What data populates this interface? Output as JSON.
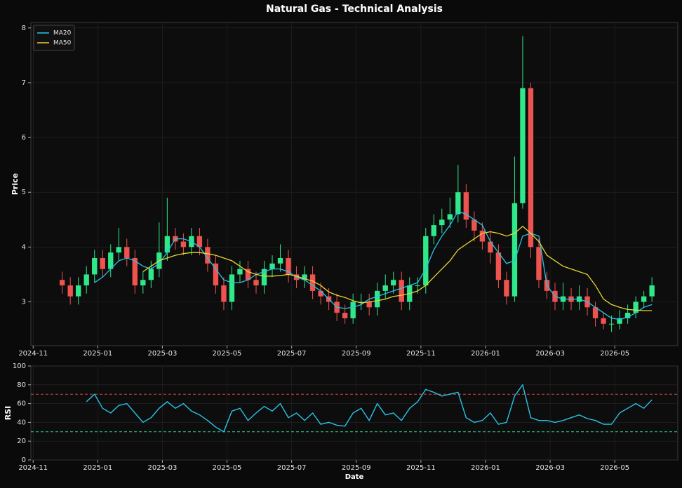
{
  "chart_data": [
    {
      "type": "candlestick",
      "title": "Natural Gas - Technical Analysis",
      "ylabel": "Price",
      "xlim": [
        -0.07,
        19.95
      ],
      "ylim": [
        2.2,
        8.1
      ],
      "xticks": [
        {
          "value": 0,
          "label": "2024-11"
        },
        {
          "value": 2,
          "label": "2025-01"
        },
        {
          "value": 4,
          "label": "2025-03"
        },
        {
          "value": 6,
          "label": "2025-05"
        },
        {
          "value": 8,
          "label": "2025-07"
        },
        {
          "value": 10,
          "label": "2025-09"
        },
        {
          "value": 12,
          "label": "2025-11"
        },
        {
          "value": 14,
          "label": "2026-01"
        },
        {
          "value": 16,
          "label": "2026-03"
        },
        {
          "value": 18,
          "label": "2026-05"
        }
      ],
      "yticks": [
        3,
        4,
        5,
        6,
        7,
        8
      ],
      "grid": true,
      "legend": "upper left",
      "up_color": "#2ee88a",
      "down_color": "#ef5350",
      "x": [
        0.9,
        1.15,
        1.4,
        1.65,
        1.9,
        2.15,
        2.4,
        2.65,
        2.9,
        3.15,
        3.4,
        3.65,
        3.9,
        4.15,
        4.4,
        4.65,
        4.9,
        5.15,
        5.4,
        5.65,
        5.9,
        6.15,
        6.4,
        6.65,
        6.9,
        7.15,
        7.4,
        7.65,
        7.9,
        8.15,
        8.4,
        8.65,
        8.9,
        9.15,
        9.4,
        9.65,
        9.9,
        10.15,
        10.4,
        10.65,
        10.9,
        11.15,
        11.4,
        11.65,
        11.9,
        12.15,
        12.4,
        12.65,
        12.9,
        13.15,
        13.4,
        13.65,
        13.9,
        14.15,
        14.4,
        14.65,
        14.9,
        15.15,
        15.4,
        15.65,
        15.9,
        16.15,
        16.4,
        16.65,
        16.9,
        17.15,
        17.4,
        17.65,
        17.9,
        18.15,
        18.4,
        18.65,
        18.9,
        19.15
      ],
      "open": [
        3.4,
        3.3,
        3.1,
        3.3,
        3.5,
        3.8,
        3.6,
        3.9,
        4.0,
        3.8,
        3.3,
        3.4,
        3.6,
        3.9,
        4.2,
        4.1,
        4.0,
        4.2,
        4.0,
        3.7,
        3.3,
        3.0,
        3.5,
        3.6,
        3.4,
        3.3,
        3.6,
        3.7,
        3.8,
        3.5,
        3.4,
        3.5,
        3.2,
        3.1,
        3.0,
        2.8,
        2.7,
        3.0,
        3.0,
        2.9,
        3.2,
        3.3,
        3.4,
        3.0,
        3.3,
        3.3,
        4.2,
        4.4,
        4.5,
        4.6,
        5.0,
        4.5,
        4.3,
        4.1,
        3.9,
        3.4,
        3.1,
        4.8,
        6.9,
        4.0,
        3.4,
        3.2,
        3.0,
        3.1,
        3.0,
        3.1,
        2.9,
        2.7,
        2.6,
        2.6,
        2.7,
        2.8,
        3.0,
        3.1
      ],
      "high": [
        3.55,
        3.45,
        3.45,
        3.65,
        3.95,
        3.95,
        4.05,
        4.35,
        4.15,
        3.95,
        3.55,
        3.75,
        4.45,
        4.9,
        4.35,
        4.25,
        4.35,
        4.35,
        4.15,
        3.85,
        3.45,
        3.65,
        3.75,
        3.75,
        3.55,
        3.75,
        3.85,
        4.05,
        3.95,
        3.65,
        3.65,
        3.65,
        3.35,
        3.25,
        3.15,
        2.95,
        3.15,
        3.15,
        3.15,
        3.35,
        3.5,
        3.55,
        3.55,
        3.45,
        3.45,
        4.35,
        4.6,
        4.7,
        4.9,
        5.5,
        5.15,
        4.65,
        4.45,
        4.3,
        4.05,
        3.55,
        5.65,
        7.85,
        7.0,
        4.15,
        3.55,
        3.35,
        3.35,
        3.25,
        3.3,
        3.25,
        3.0,
        2.8,
        2.75,
        2.85,
        2.95,
        3.1,
        3.2,
        3.45
      ],
      "low": [
        3.15,
        2.95,
        2.95,
        3.15,
        3.35,
        3.45,
        3.45,
        3.75,
        3.65,
        3.15,
        3.15,
        3.25,
        3.45,
        3.75,
        3.95,
        3.85,
        3.85,
        3.85,
        3.55,
        3.15,
        2.85,
        2.85,
        3.35,
        3.25,
        3.15,
        3.15,
        3.45,
        3.55,
        3.35,
        3.25,
        3.25,
        3.05,
        2.95,
        2.85,
        2.65,
        2.6,
        2.6,
        2.85,
        2.75,
        2.75,
        3.05,
        3.15,
        2.85,
        2.85,
        3.15,
        3.15,
        4.05,
        4.25,
        4.35,
        4.45,
        4.35,
        4.1,
        3.95,
        3.7,
        3.25,
        2.95,
        3.0,
        4.7,
        3.8,
        3.25,
        3.05,
        2.85,
        2.85,
        2.85,
        2.85,
        2.75,
        2.55,
        2.5,
        2.45,
        2.5,
        2.6,
        2.7,
        2.9,
        3.0
      ],
      "close": [
        3.3,
        3.1,
        3.3,
        3.5,
        3.8,
        3.6,
        3.9,
        4.0,
        3.8,
        3.3,
        3.4,
        3.6,
        3.9,
        4.2,
        4.1,
        4.0,
        4.2,
        4.0,
        3.7,
        3.3,
        3.0,
        3.5,
        3.6,
        3.4,
        3.3,
        3.6,
        3.7,
        3.8,
        3.5,
        3.4,
        3.5,
        3.2,
        3.1,
        3.0,
        2.8,
        2.7,
        3.0,
        3.0,
        2.9,
        3.2,
        3.3,
        3.4,
        3.0,
        3.3,
        3.3,
        4.2,
        4.4,
        4.5,
        4.6,
        5.0,
        4.5,
        4.3,
        4.1,
        3.9,
        3.4,
        3.1,
        4.8,
        6.9,
        4.0,
        3.4,
        3.2,
        3.0,
        3.1,
        3.0,
        3.1,
        2.9,
        2.7,
        2.6,
        2.6,
        2.7,
        2.8,
        3.0,
        3.1,
        3.3
      ],
      "series": [
        {
          "name": "MA20",
          "color": "#29c4e8",
          "values": [
            null,
            null,
            null,
            null,
            3.35,
            3.45,
            3.6,
            3.75,
            3.8,
            3.75,
            3.65,
            3.6,
            3.7,
            3.9,
            4.15,
            4.15,
            4.1,
            4.0,
            3.8,
            3.6,
            3.4,
            3.35,
            3.35,
            3.4,
            3.5,
            3.55,
            3.6,
            3.6,
            3.55,
            3.45,
            3.4,
            3.3,
            3.2,
            3.05,
            2.9,
            2.88,
            2.9,
            2.95,
            3.05,
            3.1,
            3.15,
            3.2,
            3.25,
            3.3,
            3.35,
            3.6,
            3.95,
            4.2,
            4.4,
            4.65,
            4.6,
            4.5,
            4.4,
            4.1,
            3.9,
            3.7,
            3.75,
            4.2,
            4.25,
            4.2,
            3.3,
            3.1,
            3.05,
            3.05,
            3.05,
            3.0,
            2.9,
            2.8,
            2.7,
            2.68,
            2.72,
            2.8,
            2.9,
            2.95
          ]
        },
        {
          "name": "MA50",
          "color": "#e8d630",
          "values": [
            null,
            null,
            null,
            null,
            null,
            null,
            null,
            null,
            null,
            null,
            3.55,
            3.65,
            3.75,
            3.8,
            3.85,
            3.88,
            3.9,
            3.9,
            3.88,
            3.85,
            3.8,
            3.75,
            3.65,
            3.55,
            3.5,
            3.47,
            3.47,
            3.48,
            3.5,
            3.47,
            3.42,
            3.38,
            3.3,
            3.18,
            3.12,
            3.08,
            3.02,
            2.98,
            3.0,
            3.02,
            3.05,
            3.1,
            3.12,
            3.15,
            3.2,
            3.3,
            3.45,
            3.6,
            3.75,
            3.95,
            4.05,
            4.15,
            4.25,
            4.28,
            4.25,
            4.2,
            4.25,
            4.38,
            4.25,
            4.1,
            3.85,
            3.75,
            3.65,
            3.6,
            3.55,
            3.5,
            3.3,
            3.05,
            2.95,
            2.9,
            2.86,
            2.85,
            2.84,
            2.84
          ]
        }
      ]
    },
    {
      "type": "line",
      "ylabel": "RSI",
      "xlabel": "Date",
      "xlim": [
        -0.07,
        19.95
      ],
      "ylim": [
        0,
        100
      ],
      "xticks": [
        {
          "value": 0,
          "label": "2024-11"
        },
        {
          "value": 2,
          "label": "2025-01"
        },
        {
          "value": 4,
          "label": "2025-03"
        },
        {
          "value": 6,
          "label": "2025-05"
        },
        {
          "value": 8,
          "label": "2025-07"
        },
        {
          "value": 10,
          "label": "2025-09"
        },
        {
          "value": 12,
          "label": "2025-11"
        },
        {
          "value": 14,
          "label": "2026-01"
        },
        {
          "value": 16,
          "label": "2026-03"
        },
        {
          "value": 18,
          "label": "2026-05"
        }
      ],
      "yticks": [
        0,
        20,
        40,
        60,
        80,
        100
      ],
      "grid": true,
      "hlines": [
        {
          "value": 70,
          "color": "#d94848"
        },
        {
          "value": 30,
          "color": "#2ecc8a"
        }
      ],
      "x": [
        0.9,
        1.15,
        1.4,
        1.65,
        1.9,
        2.15,
        2.4,
        2.65,
        2.9,
        3.15,
        3.4,
        3.65,
        3.9,
        4.15,
        4.4,
        4.65,
        4.9,
        5.15,
        5.4,
        5.65,
        5.9,
        6.15,
        6.4,
        6.65,
        6.9,
        7.15,
        7.4,
        7.65,
        7.9,
        8.15,
        8.4,
        8.65,
        8.9,
        9.15,
        9.4,
        9.65,
        9.9,
        10.15,
        10.4,
        10.65,
        10.9,
        11.15,
        11.4,
        11.65,
        11.9,
        12.15,
        12.4,
        12.65,
        12.9,
        13.15,
        13.4,
        13.65,
        13.9,
        14.15,
        14.4,
        14.65,
        14.9,
        15.15,
        15.4,
        15.65,
        15.9,
        16.15,
        16.4,
        16.65,
        16.9,
        17.15,
        17.4,
        17.65,
        17.9,
        18.15,
        18.4,
        18.65,
        18.9,
        19.15
      ],
      "color": "#29c4e8",
      "values": [
        null,
        null,
        null,
        62,
        70,
        55,
        50,
        58,
        60,
        50,
        40,
        45,
        55,
        62,
        55,
        60,
        52,
        48,
        42,
        35,
        30,
        52,
        55,
        42,
        50,
        57,
        52,
        60,
        45,
        50,
        42,
        50,
        38,
        40,
        37,
        36,
        50,
        55,
        42,
        60,
        48,
        50,
        42,
        55,
        62,
        75,
        72,
        68,
        70,
        72,
        45,
        40,
        42,
        50,
        38,
        40,
        68,
        80,
        45,
        42,
        42,
        40,
        42,
        45,
        48,
        44,
        42,
        38,
        38,
        50,
        55,
        60,
        55,
        64
      ]
    }
  ]
}
